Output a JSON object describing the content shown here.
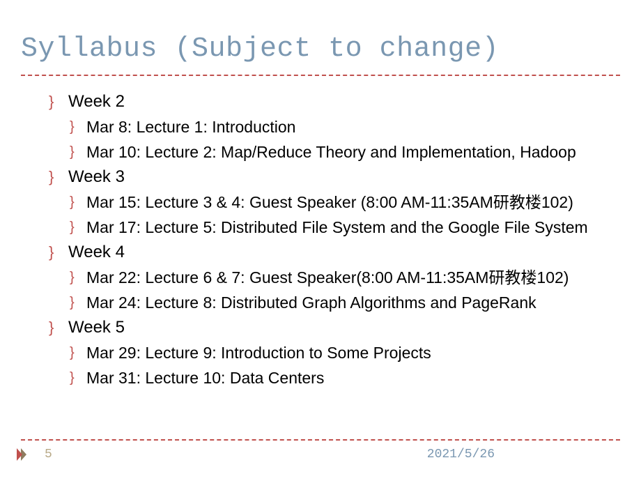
{
  "title": "Syllabus (Subject to change)",
  "title_color": "#7a97b1",
  "title_fontsize": 40,
  "title_font": "Courier New",
  "rule_color": "#c0504d",
  "bullet_glyph": "}",
  "bullet_color": "#c0504d",
  "body_font": "Trebuchet MS",
  "body_color": "#000000",
  "week_fontsize": 24,
  "item_fontsize": 23,
  "background_color": "#ffffff",
  "weeks": [
    {
      "label": "Week 2",
      "items": [
        "Mar  8: Lecture 1: Introduction",
        "Mar 10: Lecture 2: Map/Reduce Theory and Implementation, Hadoop"
      ]
    },
    {
      "label": "Week 3",
      "items": [
        "Mar 15: Lecture 3 & 4: Guest Speaker (8:00 AM-11:35AM研教楼102)",
        "Mar 17: Lecture 5: Distributed File System and the Google File System"
      ]
    },
    {
      "label": "Week 4",
      "items": [
        "Mar 22: Lecture 6 & 7: Guest Speaker(8:00 AM-11:35AM研教楼102)",
        "Mar 24: Lecture 8: Distributed Graph Algorithms and PageRank"
      ]
    },
    {
      "label": "Week 5",
      "items": [
        "Mar 29: Lecture 9: Introduction to Some Projects",
        "Mar 31: Lecture 10: Data Centers"
      ]
    }
  ],
  "footer": {
    "page_number": "5",
    "page_number_color": "#b9aa88",
    "date": "2021/5/26",
    "date_color": "#7a97b1",
    "play_icon_colors": [
      "#c0504d",
      "#8e7d60"
    ]
  }
}
